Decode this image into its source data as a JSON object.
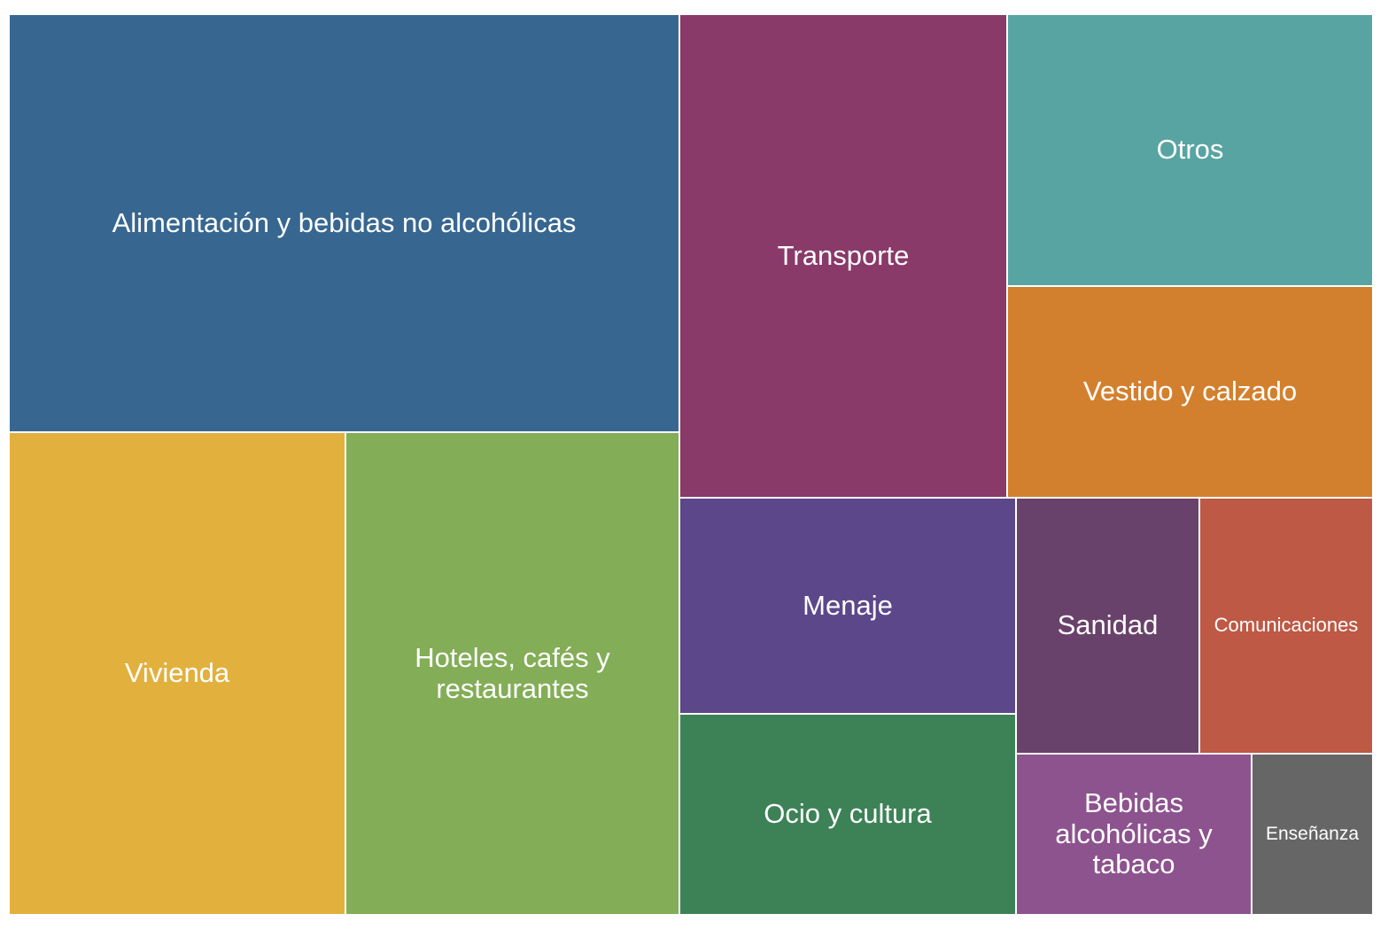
{
  "chart_data": {
    "type": "treemap",
    "title": "",
    "items": [
      {
        "label": "Alimentación y bebidas no alcohólicas",
        "value": 356,
        "color": "#376790"
      },
      {
        "label": "Vivienda",
        "value": 206,
        "color": "#E2B03D"
      },
      {
        "label": "Hoteles, cafés y restaurantes",
        "value": 204,
        "color": "#83AD57"
      },
      {
        "label": "Transporte",
        "value": 201,
        "color": "#893A69"
      },
      {
        "label": "Otros",
        "value": 125,
        "color": "#58A4A2"
      },
      {
        "label": "Vestido y calzado",
        "value": 98,
        "color": "#D3802E"
      },
      {
        "label": "Menaje",
        "value": 92,
        "color": "#5C478B"
      },
      {
        "label": "Ocio y cultura",
        "value": 86,
        "color": "#3D8257"
      },
      {
        "label": "Sanidad",
        "value": 60,
        "color": "#69426B"
      },
      {
        "label": "Comunicaciones",
        "value": 56,
        "color": "#BD5944"
      },
      {
        "label": "Bebidas alcohólicas y tabaco",
        "value": 46,
        "color": "#8D538E"
      },
      {
        "label": "Enseñanza",
        "value": 24,
        "color": "#666666"
      }
    ]
  }
}
